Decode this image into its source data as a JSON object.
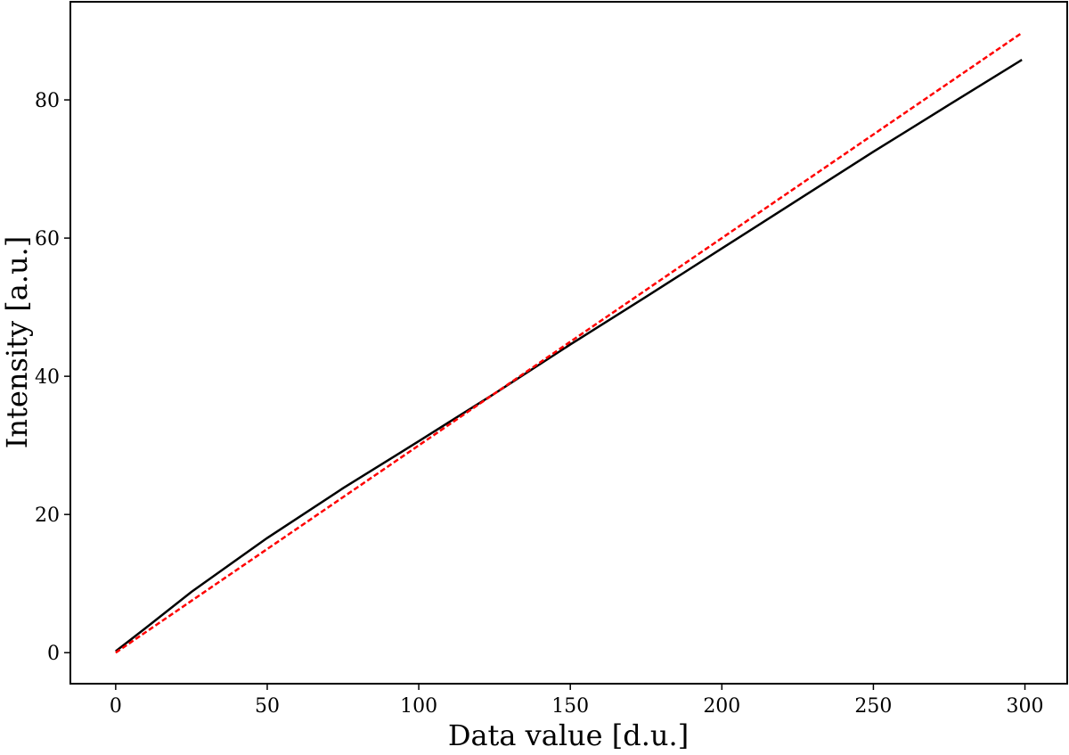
{
  "chart_data": {
    "type": "line",
    "xlabel": "Data value [d.u.]",
    "ylabel": "Intensity [a.u.]",
    "series": [
      {
        "color": "#000000",
        "dash": false,
        "x": [
          0,
          10,
          25,
          50,
          75,
          100,
          125,
          150,
          175,
          200,
          225,
          250,
          275,
          299
        ],
        "values": [
          0.2,
          3.6,
          8.8,
          16.6,
          23.8,
          30.6,
          37.5,
          44.6,
          51.5,
          58.5,
          65.5,
          72.5,
          79.3,
          85.8
        ]
      },
      {
        "color": "#ff0000",
        "dash": true,
        "x": [
          0,
          299
        ],
        "values": [
          0,
          89.7
        ]
      }
    ],
    "xlim": [
      -14.95,
      313.95
    ],
    "ylim": [
      -4.49,
      94.2
    ],
    "xticks": [
      0,
      50,
      100,
      150,
      200,
      250,
      300
    ],
    "yticks": [
      0,
      20,
      40,
      60,
      80
    ],
    "grid": false
  }
}
